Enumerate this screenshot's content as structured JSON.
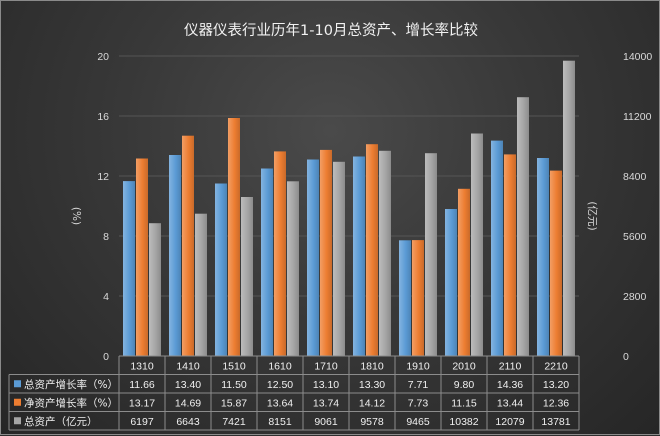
{
  "chart_data": {
    "type": "bar",
    "title": "仪器仪表行业历年1-10月总资产、增长率比较",
    "categories": [
      "1310",
      "1410",
      "1510",
      "1610",
      "1710",
      "1810",
      "1910",
      "2010",
      "2110",
      "2210"
    ],
    "y_left": {
      "label": "(%)",
      "min": 0,
      "max": 20,
      "ticks": [
        "0",
        "4",
        "8",
        "12",
        "16",
        "20"
      ]
    },
    "y_right": {
      "label": "(亿元)",
      "min": 0,
      "max": 14000,
      "ticks": [
        "0",
        "2800",
        "5600",
        "8400",
        "11200",
        "14000"
      ]
    },
    "grid": true,
    "legend": "table-bottom",
    "series": [
      {
        "name": "总资产增长率（%）",
        "axis": "left",
        "color": "#5b9bd5",
        "values": [
          11.66,
          13.4,
          11.5,
          12.5,
          13.1,
          13.3,
          7.71,
          9.8,
          14.36,
          13.2
        ],
        "labels": [
          "11.66",
          "13.40",
          "11.50",
          "12.50",
          "13.10",
          "13.30",
          "7.71",
          "9.80",
          "14.36",
          "13.20"
        ]
      },
      {
        "name": "净资产增长率（%）",
        "axis": "left",
        "color": "#ed7d31",
        "values": [
          13.17,
          14.69,
          15.87,
          13.64,
          13.74,
          14.12,
          7.73,
          11.15,
          13.44,
          12.36
        ],
        "labels": [
          "13.17",
          "14.69",
          "15.87",
          "13.64",
          "13.74",
          "14.12",
          "7.73",
          "11.15",
          "13.44",
          "12.36"
        ]
      },
      {
        "name": "总资产（亿元）",
        "axis": "right",
        "color": "#a5a5a5",
        "values": [
          6197,
          6643,
          7421,
          8151,
          9061,
          9578,
          9465,
          10382,
          12079,
          13781
        ],
        "labels": [
          "6197",
          "6643",
          "7421",
          "8151",
          "9061",
          "9578",
          "9465",
          "10382",
          "12079",
          "13781"
        ]
      }
    ]
  }
}
